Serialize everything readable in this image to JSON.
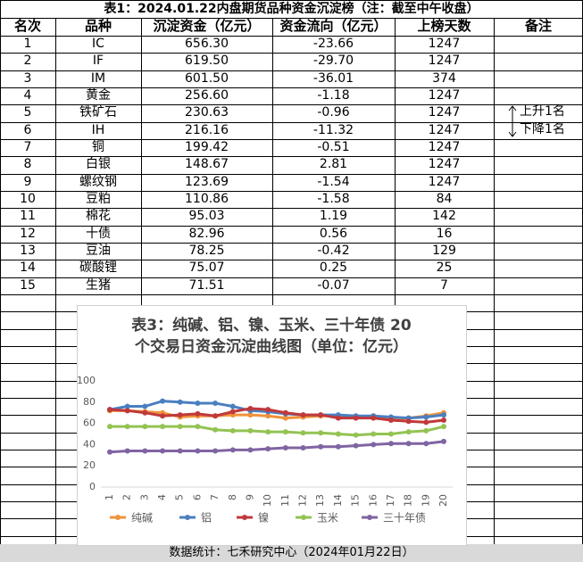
{
  "title": "表1：2024.01.22内盘期货品种资金沉淀榜（注：截至中午收盘）",
  "table": {
    "header": [
      "名次",
      "品种",
      "沉淀资金（亿元）",
      "资金流向（亿元）",
      "上榜天数",
      "备注"
    ],
    "rows": [
      [
        "1",
        "IC",
        "656.30",
        "-23.66",
        "1247"
      ],
      [
        "2",
        "IF",
        "619.50",
        "-29.70",
        "1247"
      ],
      [
        "3",
        "IM",
        "601.50",
        "-36.01",
        "374"
      ],
      [
        "4",
        "黄金",
        "256.60",
        "-1.18",
        "1247"
      ],
      [
        "5",
        "铁矿石",
        "230.63",
        "-0.96",
        "1247"
      ],
      [
        "6",
        "IH",
        "216.16",
        "-11.32",
        "1247"
      ],
      [
        "7",
        "铜",
        "199.42",
        "-0.51",
        "1247"
      ],
      [
        "8",
        "白银",
        "148.67",
        "2.81",
        "1247"
      ],
      [
        "9",
        "螺纹钢",
        "123.69",
        "-1.54",
        "1247"
      ],
      [
        "10",
        "豆粕",
        "110.86",
        "-1.58",
        "84"
      ],
      [
        "11",
        "棉花",
        "95.03",
        "1.19",
        "142"
      ],
      [
        "12",
        "十债",
        "82.96",
        "0.56",
        "16"
      ],
      [
        "13",
        "豆油",
        "78.25",
        "-0.42",
        "129"
      ],
      [
        "14",
        "碳酸锂",
        "75.07",
        "0.25",
        "25"
      ],
      [
        "15",
        "生猪",
        "71.51",
        "-0.07",
        "7"
      ]
    ],
    "notes": [
      "上升1名",
      "下降1名"
    ]
  },
  "chart_data": {
    "type": "line",
    "title": [
      "表3：纯碱、铝、镍、玉米、三十年债 20",
      "个交易日资金沉淀曲线图（单位：亿元）"
    ],
    "categories": [
      "1",
      "2",
      "3",
      "4",
      "5",
      "6",
      "7",
      "8",
      "9",
      "10",
      "11",
      "12",
      "13",
      "14",
      "15",
      "16",
      "17",
      "18",
      "19",
      "20"
    ],
    "ylim": [
      0,
      100
    ],
    "yticks": [
      0,
      20,
      40,
      60,
      80,
      100
    ],
    "series": [
      {
        "name": "纯碱",
        "color": "#f0923a",
        "values": [
          72,
          72,
          71,
          70,
          66,
          67,
          67,
          68,
          68,
          67,
          65,
          66,
          67,
          67,
          66,
          67,
          64,
          65,
          67,
          70
        ]
      },
      {
        "name": "铝",
        "color": "#4a7fc1",
        "values": [
          73,
          76,
          76,
          81,
          80,
          79,
          79,
          76,
          72,
          71,
          69,
          68,
          68,
          68,
          67,
          67,
          66,
          65,
          66,
          68
        ]
      },
      {
        "name": "镍",
        "color": "#c0393b",
        "values": [
          73,
          72,
          70,
          67,
          68,
          69,
          67,
          71,
          74,
          73,
          70,
          68,
          68,
          65,
          65,
          65,
          63,
          62,
          61,
          63
        ]
      },
      {
        "name": "玉米",
        "color": "#93c353",
        "values": [
          57,
          57,
          57,
          57,
          57,
          57,
          54,
          53,
          53,
          52,
          52,
          51,
          51,
          50,
          49,
          50,
          50,
          52,
          53,
          57
        ]
      },
      {
        "name": "三十年债",
        "color": "#8064a2",
        "values": [
          33,
          34,
          34,
          34,
          34,
          34,
          34,
          35,
          35,
          36,
          37,
          37,
          38,
          38,
          39,
          40,
          41,
          41,
          41,
          43
        ]
      }
    ],
    "legend": "bottom"
  },
  "footer": "数据统计：七禾研究中心（2024年01月22日）"
}
